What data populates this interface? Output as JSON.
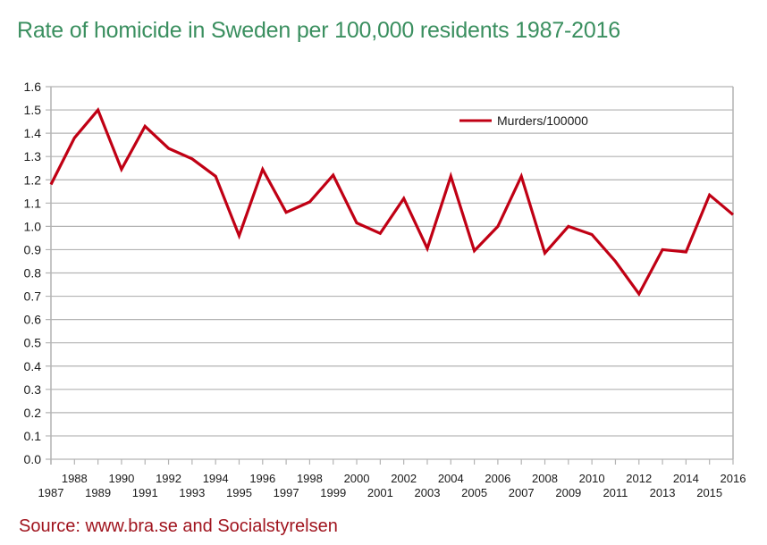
{
  "title": "Rate of homicide in Sweden per 100,000 residents 1987-2016",
  "source": "Source: www.bra.se and Socialstyrelsen",
  "colors": {
    "title": "#3a8f5f",
    "source": "#a0141e",
    "series": "#c00014",
    "grid": "#b3b3b3"
  },
  "chart_data": {
    "type": "line",
    "title": "Rate of homicide in Sweden per 100,000 residents 1987-2016",
    "xlabel": "",
    "ylabel": "",
    "ylim": [
      0,
      1.6
    ],
    "yticks": [
      "0.0",
      "0.1",
      "0.2",
      "0.3",
      "0.4",
      "0.5",
      "0.6",
      "0.7",
      "0.8",
      "0.9",
      "1.0",
      "1.1",
      "1.2",
      "1.3",
      "1.4",
      "1.5",
      "1.6"
    ],
    "grid": true,
    "legend_position": "top-right",
    "x": [
      "1987",
      "1988",
      "1989",
      "1990",
      "1991",
      "1992",
      "1993",
      "1994",
      "1995",
      "1996",
      "1997",
      "1998",
      "1999",
      "2000",
      "2001",
      "2002",
      "2003",
      "2004",
      "2005",
      "2006",
      "2007",
      "2008",
      "2009",
      "2010",
      "2011",
      "2012",
      "2013",
      "2014",
      "2015",
      "2016"
    ],
    "series": [
      {
        "name": "Murders/100000",
        "values": [
          1.18,
          1.38,
          1.5,
          1.245,
          1.43,
          1.335,
          1.29,
          1.215,
          0.96,
          1.245,
          1.06,
          1.105,
          1.22,
          1.015,
          0.97,
          1.12,
          0.905,
          1.215,
          0.895,
          1.0,
          1.215,
          0.885,
          1.0,
          0.965,
          0.85,
          0.71,
          0.9,
          0.89,
          1.135,
          1.05
        ]
      }
    ]
  }
}
